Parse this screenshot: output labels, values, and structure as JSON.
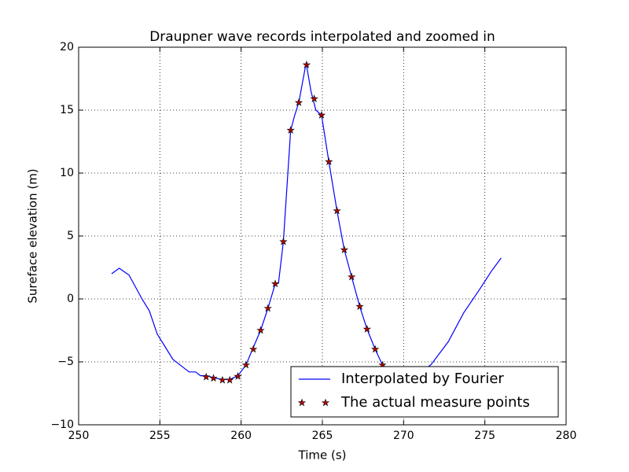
{
  "chart_data": {
    "type": "line",
    "title": "Draupner wave records interpolated and zoomed in",
    "xlabel": "Time (s)",
    "ylabel": "Sureface elevation (m)",
    "xlim": [
      250,
      280
    ],
    "ylim": [
      -10,
      20
    ],
    "xticks": [
      250,
      255,
      260,
      265,
      270,
      275,
      280
    ],
    "yticks": [
      {
        "value": -10,
        "label": "−10"
      },
      {
        "value": -5,
        "label": "−5"
      },
      0,
      5,
      10,
      15,
      20
    ],
    "grid": true,
    "legend": "lower right",
    "series": [
      {
        "name": "Interpolated by Fourier",
        "type": "line",
        "color": "#0000ff",
        "x": [
          252.03,
          252.5,
          253.1,
          253.9,
          254.35,
          254.84,
          255.3,
          255.8,
          256.3,
          256.8,
          257.2,
          257.5,
          257.9,
          258.4,
          258.9,
          259.3,
          259.8,
          260.3,
          260.7,
          261.2,
          261.65,
          262.1,
          262.3,
          262.6,
          263.05,
          263.3,
          263.55,
          264.0,
          264.3,
          264.6,
          264.95,
          265.4,
          265.9,
          266.35,
          266.8,
          267.3,
          267.75,
          268.25,
          268.7,
          269.5,
          270.5,
          271.2,
          271.7,
          272.75,
          273.7,
          274.7,
          275.4,
          276.0
        ],
        "values": [
          2.0,
          2.44,
          1.9,
          0.0,
          -0.94,
          -2.8,
          -3.75,
          -4.8,
          -5.3,
          -5.8,
          -5.8,
          -6.1,
          -6.1,
          -6.3,
          -6.4,
          -6.4,
          -6.1,
          -5.25,
          -4.0,
          -2.5,
          -0.75,
          1.2,
          1.25,
          4.56,
          13.4,
          14.6,
          15.6,
          18.75,
          16.5,
          15.0,
          14.6,
          10.9,
          7.0,
          3.9,
          1.75,
          -0.6,
          -2.4,
          -4.0,
          -5.25,
          -6.0,
          -6.2,
          -5.7,
          -5.2,
          -3.4,
          -1.1,
          0.8,
          2.2,
          3.25
        ]
      },
      {
        "name": "The actual measure points",
        "type": "scatter",
        "color": "#bb0000",
        "x": [
          257.85,
          258.3,
          258.85,
          259.3,
          259.8,
          260.3,
          260.75,
          261.2,
          261.65,
          262.1,
          262.6,
          263.05,
          263.55,
          264.03,
          264.5,
          264.95,
          265.4,
          265.9,
          266.35,
          266.8,
          267.3,
          267.75,
          268.25,
          268.7
        ],
        "values": [
          -6.2,
          -6.3,
          -6.45,
          -6.45,
          -6.15,
          -5.25,
          -4.0,
          -2.5,
          -0.75,
          1.2,
          4.55,
          13.4,
          15.6,
          18.6,
          15.9,
          14.6,
          10.9,
          7.0,
          3.9,
          1.75,
          -0.6,
          -2.4,
          -4.0,
          -5.25
        ]
      }
    ]
  }
}
